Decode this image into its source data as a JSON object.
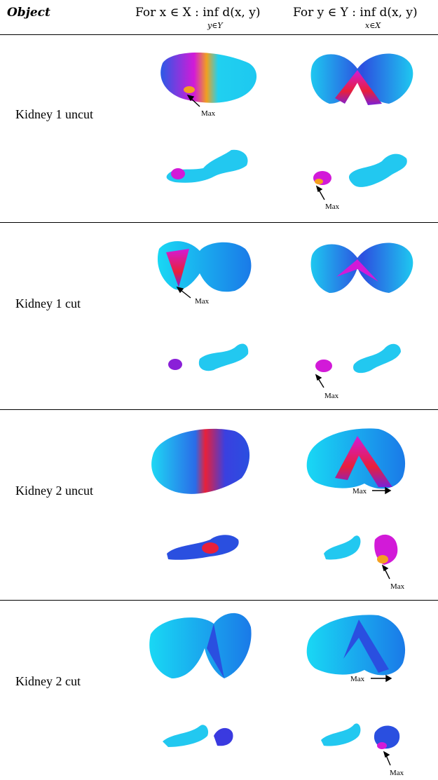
{
  "header": {
    "col_object": "Object",
    "col_x": "For x ∈ X : inf d(x, y)",
    "col_x_sub": "y∈Y",
    "col_y": "For y ∈ Y : inf d(x, y)",
    "col_y_sub": "x∈X"
  },
  "rows": [
    {
      "label": "Kidney 1 uncut"
    },
    {
      "label": "Kidney 1 cut"
    },
    {
      "label": "Kidney 2 uncut"
    },
    {
      "label": "Kidney 2 cut"
    }
  ],
  "annotation": {
    "max_label": "Max"
  },
  "colors": {
    "cyan": "#19d8f4",
    "blue": "#2a4fe0",
    "magenta": "#d21ad8",
    "red": "#e8203a",
    "orange": "#f4a020"
  }
}
